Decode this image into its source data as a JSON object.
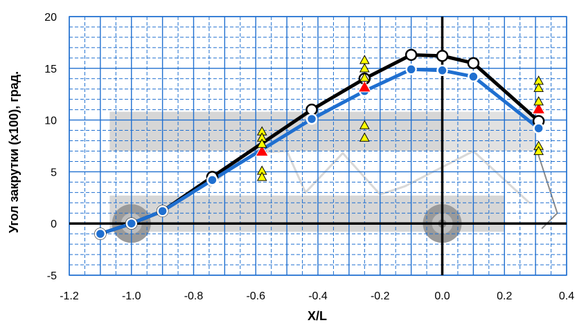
{
  "chart_data": {
    "type": "scatter",
    "xlabel": "X/L",
    "ylabel": "Угол закрутки (x100), град.",
    "xlim": [
      -1.2,
      0.4
    ],
    "ylim": [
      -5,
      20
    ],
    "xticks": [
      "-1.2",
      "-1.0",
      "-0.8",
      "-0.6",
      "-0.4",
      "-0.2",
      "0.0",
      "0.2",
      "0.4"
    ],
    "yticks": [
      "-5",
      "0",
      "5",
      "10",
      "15",
      "20"
    ],
    "grid": true,
    "legend": "none",
    "series": [
      {
        "marker": "circle-white",
        "color": "#000000",
        "points": [
          {
            "x": -1.1,
            "y": -1.0
          },
          {
            "x": -1.0,
            "y": 0.0
          },
          {
            "x": -0.9,
            "y": 1.2
          },
          {
            "x": -0.74,
            "y": 4.5
          },
          {
            "x": -0.42,
            "y": 11.0
          },
          {
            "x": -0.25,
            "y": 14.0
          },
          {
            "x": -0.1,
            "y": 16.3
          },
          {
            "x": 0.0,
            "y": 16.2
          },
          {
            "x": 0.1,
            "y": 15.5
          },
          {
            "x": 0.31,
            "y": 9.9
          }
        ]
      },
      {
        "marker": "circle-blue",
        "color": "#1f6fd0",
        "points": [
          {
            "x": -1.1,
            "y": -1.0
          },
          {
            "x": -1.0,
            "y": 0.0
          },
          {
            "x": -0.9,
            "y": 1.2
          },
          {
            "x": -0.74,
            "y": 4.2
          },
          {
            "x": -0.42,
            "y": 10.1
          },
          {
            "x": -0.25,
            "y": 12.8
          },
          {
            "x": -0.1,
            "y": 14.9
          },
          {
            "x": 0.0,
            "y": 14.8
          },
          {
            "x": 0.1,
            "y": 14.2
          },
          {
            "x": 0.31,
            "y": 9.2
          }
        ]
      },
      {
        "marker": "triangle-red",
        "color": "#ff0000",
        "points": [
          {
            "x": -0.58,
            "y": 7.0
          },
          {
            "x": -0.25,
            "y": 13.2
          },
          {
            "x": 0.31,
            "y": 11.1
          }
        ]
      },
      {
        "marker": "triangle-yellow",
        "color": "#ffff00",
        "points": [
          {
            "x": -0.58,
            "y": 8.9
          },
          {
            "x": -0.58,
            "y": 8.3
          },
          {
            "x": -0.58,
            "y": 7.7
          },
          {
            "x": -0.58,
            "y": 5.1
          },
          {
            "x": -0.58,
            "y": 4.5
          },
          {
            "x": -0.25,
            "y": 15.8
          },
          {
            "x": -0.25,
            "y": 15.0
          },
          {
            "x": -0.25,
            "y": 14.1
          },
          {
            "x": -0.25,
            "y": 9.5
          },
          {
            "x": -0.25,
            "y": 8.3
          },
          {
            "x": 0.31,
            "y": 13.8
          },
          {
            "x": 0.31,
            "y": 13.1
          },
          {
            "x": 0.31,
            "y": 11.8
          },
          {
            "x": 0.31,
            "y": 7.5
          },
          {
            "x": 0.31,
            "y": 7.0
          }
        ]
      }
    ],
    "colors": {
      "grid": "#1f6fd0",
      "background_car": "#c8c8c8",
      "axis_zero": "#000000"
    }
  }
}
